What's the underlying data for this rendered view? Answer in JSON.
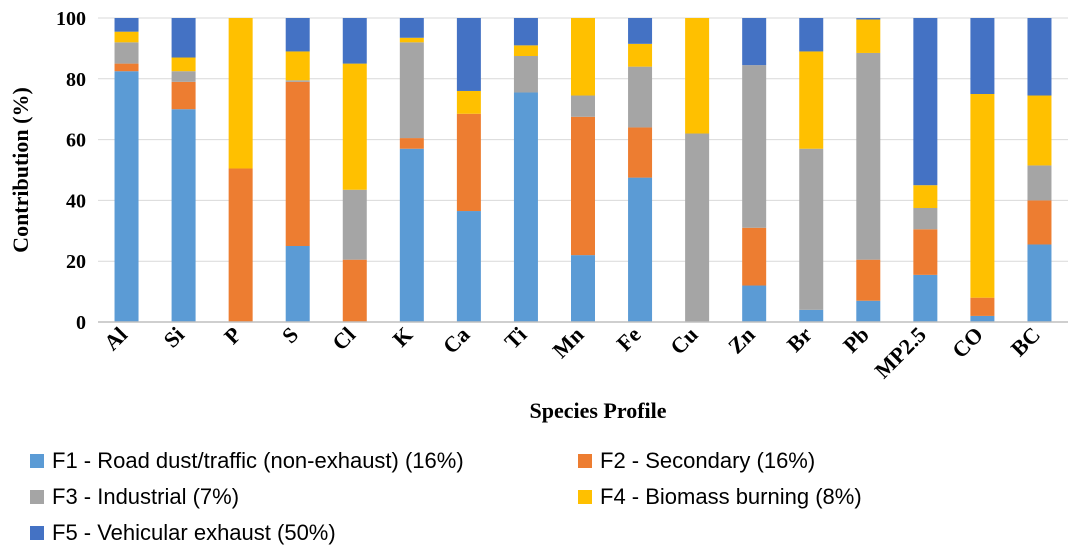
{
  "chart_data": {
    "type": "bar",
    "stacked": true,
    "ylabel": "Contribution (%)",
    "xlabel": "Species Profile",
    "ylim": [
      0,
      100
    ],
    "yticks": [
      0,
      20,
      40,
      60,
      80,
      100
    ],
    "categories": [
      "Al",
      "Si",
      "P",
      "S",
      "Cl",
      "K",
      "Ca",
      "Ti",
      "Mn",
      "Fe",
      "Cu",
      "Zn",
      "Br",
      "Pb",
      "MP2.5",
      "CO",
      "BC"
    ],
    "series": [
      {
        "name": "F1 - Road dust/traffic (non-exhaust) (16%)",
        "color": "#5b9bd5",
        "values": [
          82.5,
          70,
          0,
          25,
          0,
          57,
          36.5,
          75.5,
          22,
          47.5,
          0,
          12,
          4,
          7,
          15.5,
          2,
          25.5
        ]
      },
      {
        "name": "F2 - Secondary (16%)",
        "color": "#ed7d31",
        "values": [
          2.5,
          9,
          50.5,
          54,
          20.5,
          3.5,
          32,
          0,
          45.5,
          16.5,
          0,
          19,
          0,
          13.5,
          15,
          6,
          14.5
        ]
      },
      {
        "name": "F3 - Industrial (7%)",
        "color": "#a5a5a5",
        "values": [
          7,
          3.5,
          0,
          0.5,
          23,
          31.5,
          0,
          12,
          7,
          20,
          62,
          53.5,
          53,
          68,
          7,
          0,
          11.5
        ]
      },
      {
        "name": "F4 - Biomass burning (8%)",
        "color": "#ffc000",
        "values": [
          3.5,
          4.5,
          49.5,
          9.5,
          41.5,
          1.5,
          7.5,
          3.5,
          25.5,
          7.5,
          38,
          0,
          32,
          11,
          7.5,
          67,
          23
        ]
      },
      {
        "name": "F5 - Vehicular exhaust (50%)",
        "color": "#4472c4",
        "values": [
          4.5,
          13,
          0,
          11,
          15,
          6.5,
          24,
          9,
          0,
          8.5,
          0,
          15.5,
          11,
          0.5,
          55,
          25,
          25.5
        ]
      }
    ]
  }
}
